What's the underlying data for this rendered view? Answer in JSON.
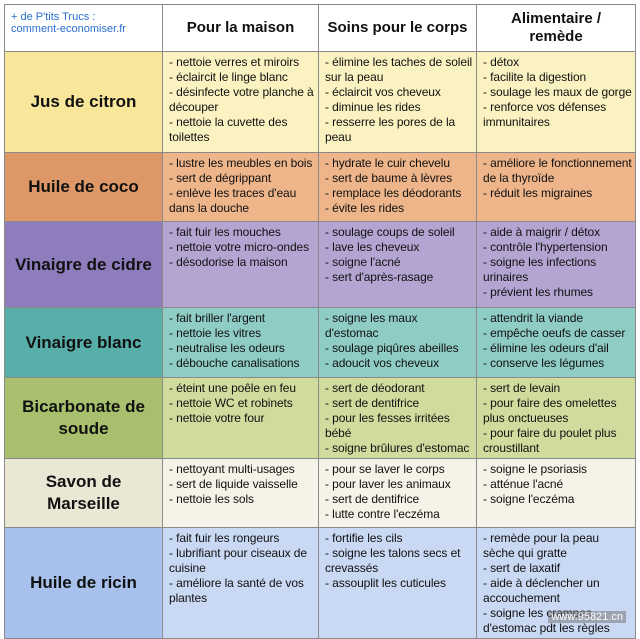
{
  "brand": {
    "line1": "+ de P'tits Trucs :",
    "line2": "comment-economiser.fr"
  },
  "headers": {
    "col1": "Pour la maison",
    "col2": "Soins pour le corps",
    "col3": "Alimentaire / remède"
  },
  "rows": [
    {
      "name": "Jus de citron",
      "maison": [
        "- nettoie verres et miroirs",
        "- éclaircit le linge blanc",
        "- désinfecte votre planche à découper",
        "- nettoie la cuvette des toilettes"
      ],
      "corps": [
        "- élimine les taches de soleil sur la peau",
        "- éclaircit vos cheveux",
        "- diminue les rides",
        "- resserre les pores de la peau"
      ],
      "remede": [
        "- détox",
        "- facilite la digestion",
        "- soulage les maux de gorge",
        "- renforce vos défenses immunitaires"
      ]
    },
    {
      "name": "Huile de coco",
      "maison": [
        "- lustre les meubles en bois",
        "- sert de dégrippant",
        "- enlève les traces d'eau dans la douche"
      ],
      "corps": [
        "- hydrate le cuir chevelu",
        "- sert de baume à lèvres",
        "- remplace les déodorants",
        "- évite les rides"
      ],
      "remede": [
        "- améliore le fonctionnement de la thyroïde",
        "- réduit les migraines"
      ]
    },
    {
      "name": "Vinaigre de cidre",
      "maison": [
        "- fait fuir les mouches",
        "- nettoie votre micro-ondes",
        "- désodorise la maison"
      ],
      "corps": [
        "- soulage coups de soleil",
        "- lave les cheveux",
        "- soigne l'acné",
        "- sert d'après-rasage"
      ],
      "remede": [
        "- aide à maigrir / détox",
        "- contrôle l'hypertension",
        "- soigne les infections urinaires",
        "- prévient les rhumes"
      ]
    },
    {
      "name": "Vinaigre blanc",
      "maison": [
        "- fait briller l'argent",
        "- nettoie les vitres",
        "- neutralise les odeurs",
        "- débouche canalisations"
      ],
      "corps": [
        "- soigne les maux d'estomac",
        "- soulage piqûres abeilles",
        "- adoucit vos cheveux"
      ],
      "remede": [
        "- attendrit la viande",
        "- empêche oeufs de casser",
        "- élimine les odeurs d'ail",
        "- conserve les légumes"
      ]
    },
    {
      "name": "Bicarbonate de soude",
      "maison": [
        "- éteint une poêle en feu",
        "- nettoie WC et robinets",
        "- nettoie votre four"
      ],
      "corps": [
        "- sert de déodorant",
        "- sert de dentifrice",
        "- pour les fesses irritées bébé",
        "- soigne brûlures d'estomac"
      ],
      "remede": [
        "- sert de levain",
        "- pour faire des omelettes plus onctueuses",
        "- pour faire du poulet plus croustillant"
      ]
    },
    {
      "name": "Savon de Marseille",
      "maison": [
        "- nettoyant multi-usages",
        "- sert de liquide vaisselle",
        "- nettoie les sols"
      ],
      "corps": [
        "- pour se laver le corps",
        "- pour laver les animaux",
        "- sert de dentifrice",
        "- lutte contre l'eczéma"
      ],
      "remede": [
        "- soigne le psoriasis",
        "- atténue l'acné",
        "- soigne l'eczéma"
      ]
    },
    {
      "name": "Huile de ricin",
      "maison": [
        "- fait fuir les rongeurs",
        "- lubrifiant pour ciseaux de cuisine",
        "- améliore la santé de vos plantes"
      ],
      "corps": [
        "- fortifie les cils",
        "- soigne les talons secs et crevassés",
        "- assouplit les cuticules"
      ],
      "remede": [
        "- remède pour la peau sèche qui gratte",
        "- sert de laxatif",
        "- aide à déclencher un accouchement",
        "- soigne les crampes d'estomac pdt les règles"
      ]
    }
  ],
  "watermark": "www.95821.cn"
}
